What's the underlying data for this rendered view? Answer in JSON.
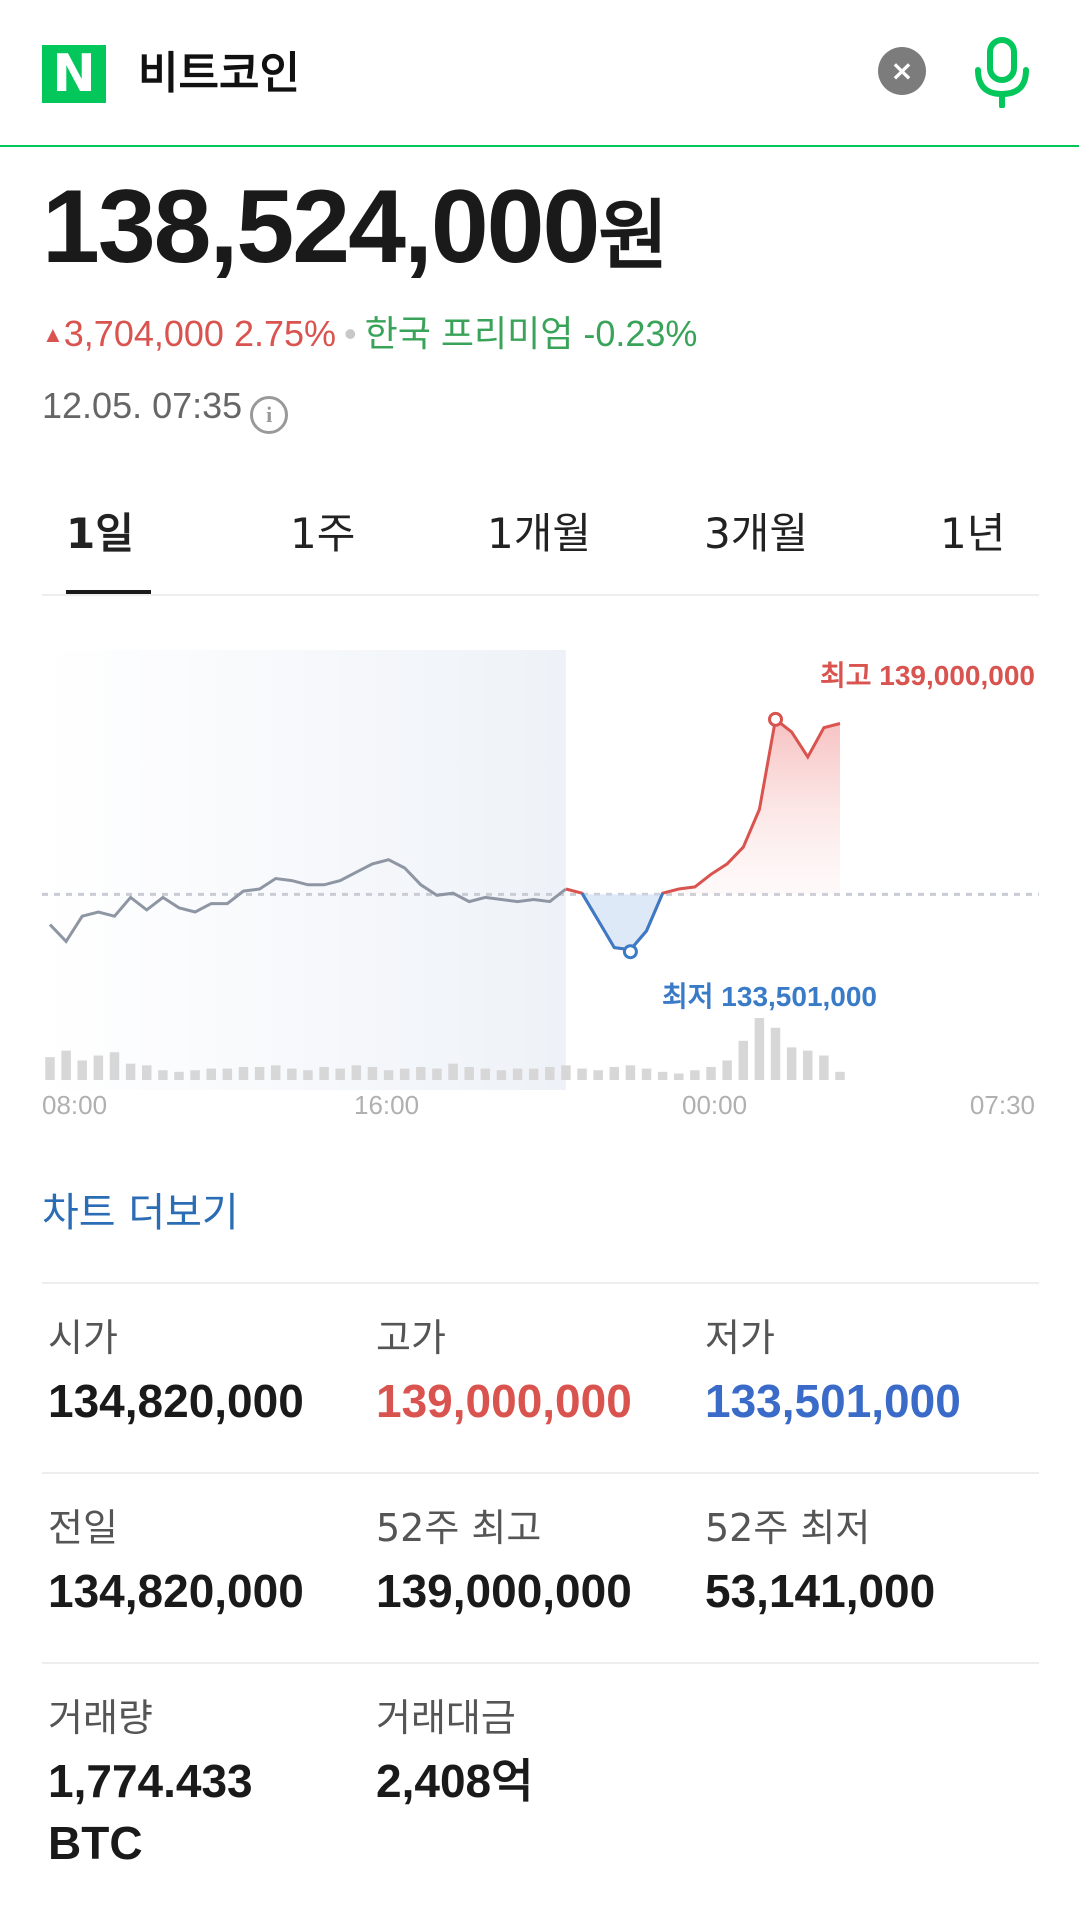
{
  "header": {
    "logo_letter": "N",
    "query": "비트코인",
    "clear_glyph": "×"
  },
  "price": {
    "value": "138,524,000",
    "unit": "원"
  },
  "change": {
    "amount": "3,704,000",
    "percent": "2.75%",
    "premium": "한국 프리미엄 -0.23%"
  },
  "timestamp": "12.05. 07:35",
  "info_glyph": "i",
  "tabs": [
    "1일",
    "1주",
    "1개월",
    "3개월",
    "1년"
  ],
  "colors": {
    "brand": "#03c75a",
    "up": "#d9534f",
    "down": "#3a7bc8",
    "link": "#2a6db5"
  },
  "chart_data": {
    "type": "line",
    "x_ticks": [
      "08:00",
      "16:00",
      "00:00",
      "07:30"
    ],
    "baseline": 134820000,
    "high_label": "최고 139,000,000",
    "low_label": "최저 133,501,000",
    "high": 139000000,
    "low": 133501000,
    "ylim": [
      132300000,
      139700000
    ],
    "series": [
      {
        "values": [
          134100000,
          133700000,
          134300000,
          134400000,
          134300000,
          134750000,
          134450000,
          134750000,
          134500000,
          134400000,
          134600000,
          134600000,
          134900000,
          134950000,
          135200000,
          135150000,
          135050000,
          135050000,
          135150000,
          135350000,
          135550000,
          135650000,
          135450000,
          135050000,
          134800000,
          134850000,
          134650000,
          134750000,
          134700000,
          134650000,
          134700000,
          134650000,
          134950000,
          134850000,
          134200000,
          133550000,
          133501000,
          133950000,
          134850000,
          134950000,
          135000000,
          135300000,
          135550000,
          135950000,
          136850000,
          139000000,
          138700000,
          138100000,
          138800000,
          138900000
        ]
      }
    ],
    "split_index": 32,
    "volume": [
      14,
      18,
      12,
      15,
      17,
      10,
      9,
      6,
      5,
      6,
      7,
      7,
      8,
      8,
      9,
      7,
      6,
      8,
      7,
      9,
      8,
      6,
      7,
      8,
      7,
      10,
      8,
      7,
      6,
      7,
      7,
      8,
      9,
      7,
      6,
      8,
      9,
      7,
      5,
      4,
      6,
      8,
      12,
      24,
      38,
      32,
      20,
      18,
      15,
      5
    ]
  },
  "chart_more": "차트 더보기",
  "stats": [
    {
      "label": "시가",
      "value": "134,820,000"
    },
    {
      "label": "고가",
      "value": "139,000,000"
    },
    {
      "label": "저가",
      "value": "133,501,000"
    },
    {
      "label": "전일",
      "value": "134,820,000"
    },
    {
      "label": "52주 최고",
      "value": "139,000,000"
    },
    {
      "label": "52주 최저",
      "value": "53,141,000"
    },
    {
      "label": "거래량",
      "value": "1,774.433",
      "value2": "BTC"
    },
    {
      "label": "거래대금",
      "value": "2,408억"
    }
  ]
}
